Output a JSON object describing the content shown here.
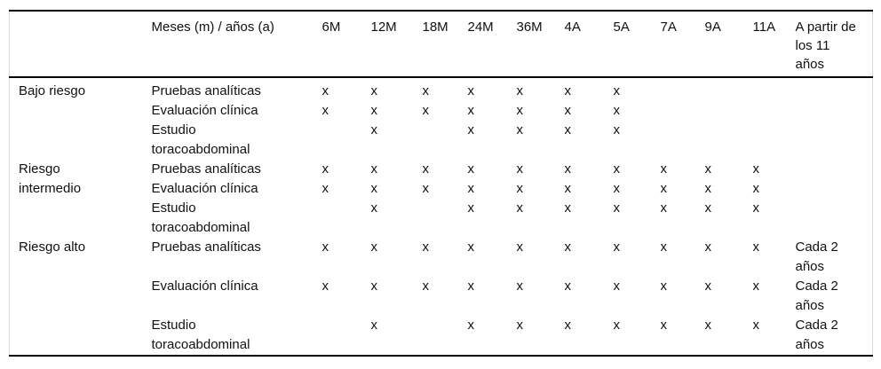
{
  "table": {
    "header": {
      "risk_label": "",
      "schedule_label": "Meses (m) / años (a)",
      "timepoints": [
        "6M",
        "12M",
        "18M",
        "24M",
        "36M",
        "4A",
        "5A",
        "7A",
        "9A",
        "11A"
      ],
      "after_label": "A partir de\nlos 11\naños"
    },
    "sections": [
      {
        "risk": "Bajo riesgo",
        "rows": [
          {
            "procedure": "Pruebas analíticas",
            "marks": [
              "x",
              "x",
              "x",
              "x",
              "x",
              "x",
              "x",
              "",
              "",
              ""
            ],
            "last": ""
          },
          {
            "procedure": "Evaluación clínica",
            "marks": [
              "x",
              "x",
              "x",
              "x",
              "x",
              "x",
              "x",
              "",
              "",
              ""
            ],
            "last": ""
          },
          {
            "procedure": "Estudio\ntoracoabdominal",
            "marks": [
              "",
              "x",
              "",
              "x",
              "x",
              "x",
              "x",
              "",
              "",
              ""
            ],
            "last": ""
          }
        ]
      },
      {
        "risk": "Riesgo\nintermedio",
        "rows": [
          {
            "procedure": "Pruebas analíticas",
            "marks": [
              "x",
              "x",
              "x",
              "x",
              "x",
              "x",
              "x",
              "x",
              "x",
              "x"
            ],
            "last": ""
          },
          {
            "procedure": "Evaluación clínica",
            "marks": [
              "x",
              "x",
              "x",
              "x",
              "x",
              "x",
              "x",
              "x",
              "x",
              "x"
            ],
            "last": ""
          },
          {
            "procedure": "Estudio\ntoracoabdominal",
            "marks": [
              "",
              "x",
              "",
              "x",
              "x",
              "x",
              "x",
              "x",
              "x",
              "x"
            ],
            "last": ""
          }
        ]
      },
      {
        "risk": "Riesgo alto",
        "rows": [
          {
            "procedure": "Pruebas analíticas",
            "marks": [
              "x",
              "x",
              "x",
              "x",
              "x",
              "x",
              "x",
              "x",
              "x",
              "x"
            ],
            "last": "Cada 2\naños"
          },
          {
            "procedure": "Evaluación clínica",
            "marks": [
              "x",
              "x",
              "x",
              "x",
              "x",
              "x",
              "x",
              "x",
              "x",
              "x"
            ],
            "last": "Cada 2\naños"
          },
          {
            "procedure": "Estudio\ntoracoabdominal",
            "marks": [
              "",
              "x",
              "",
              "x",
              "x",
              "x",
              "x",
              "x",
              "x",
              "x"
            ],
            "last": "Cada 2\naños"
          }
        ]
      }
    ]
  },
  "colors": {
    "rule": "#000000",
    "side_border": "#d6d6d6",
    "text": "#111111",
    "background": "#ffffff"
  }
}
